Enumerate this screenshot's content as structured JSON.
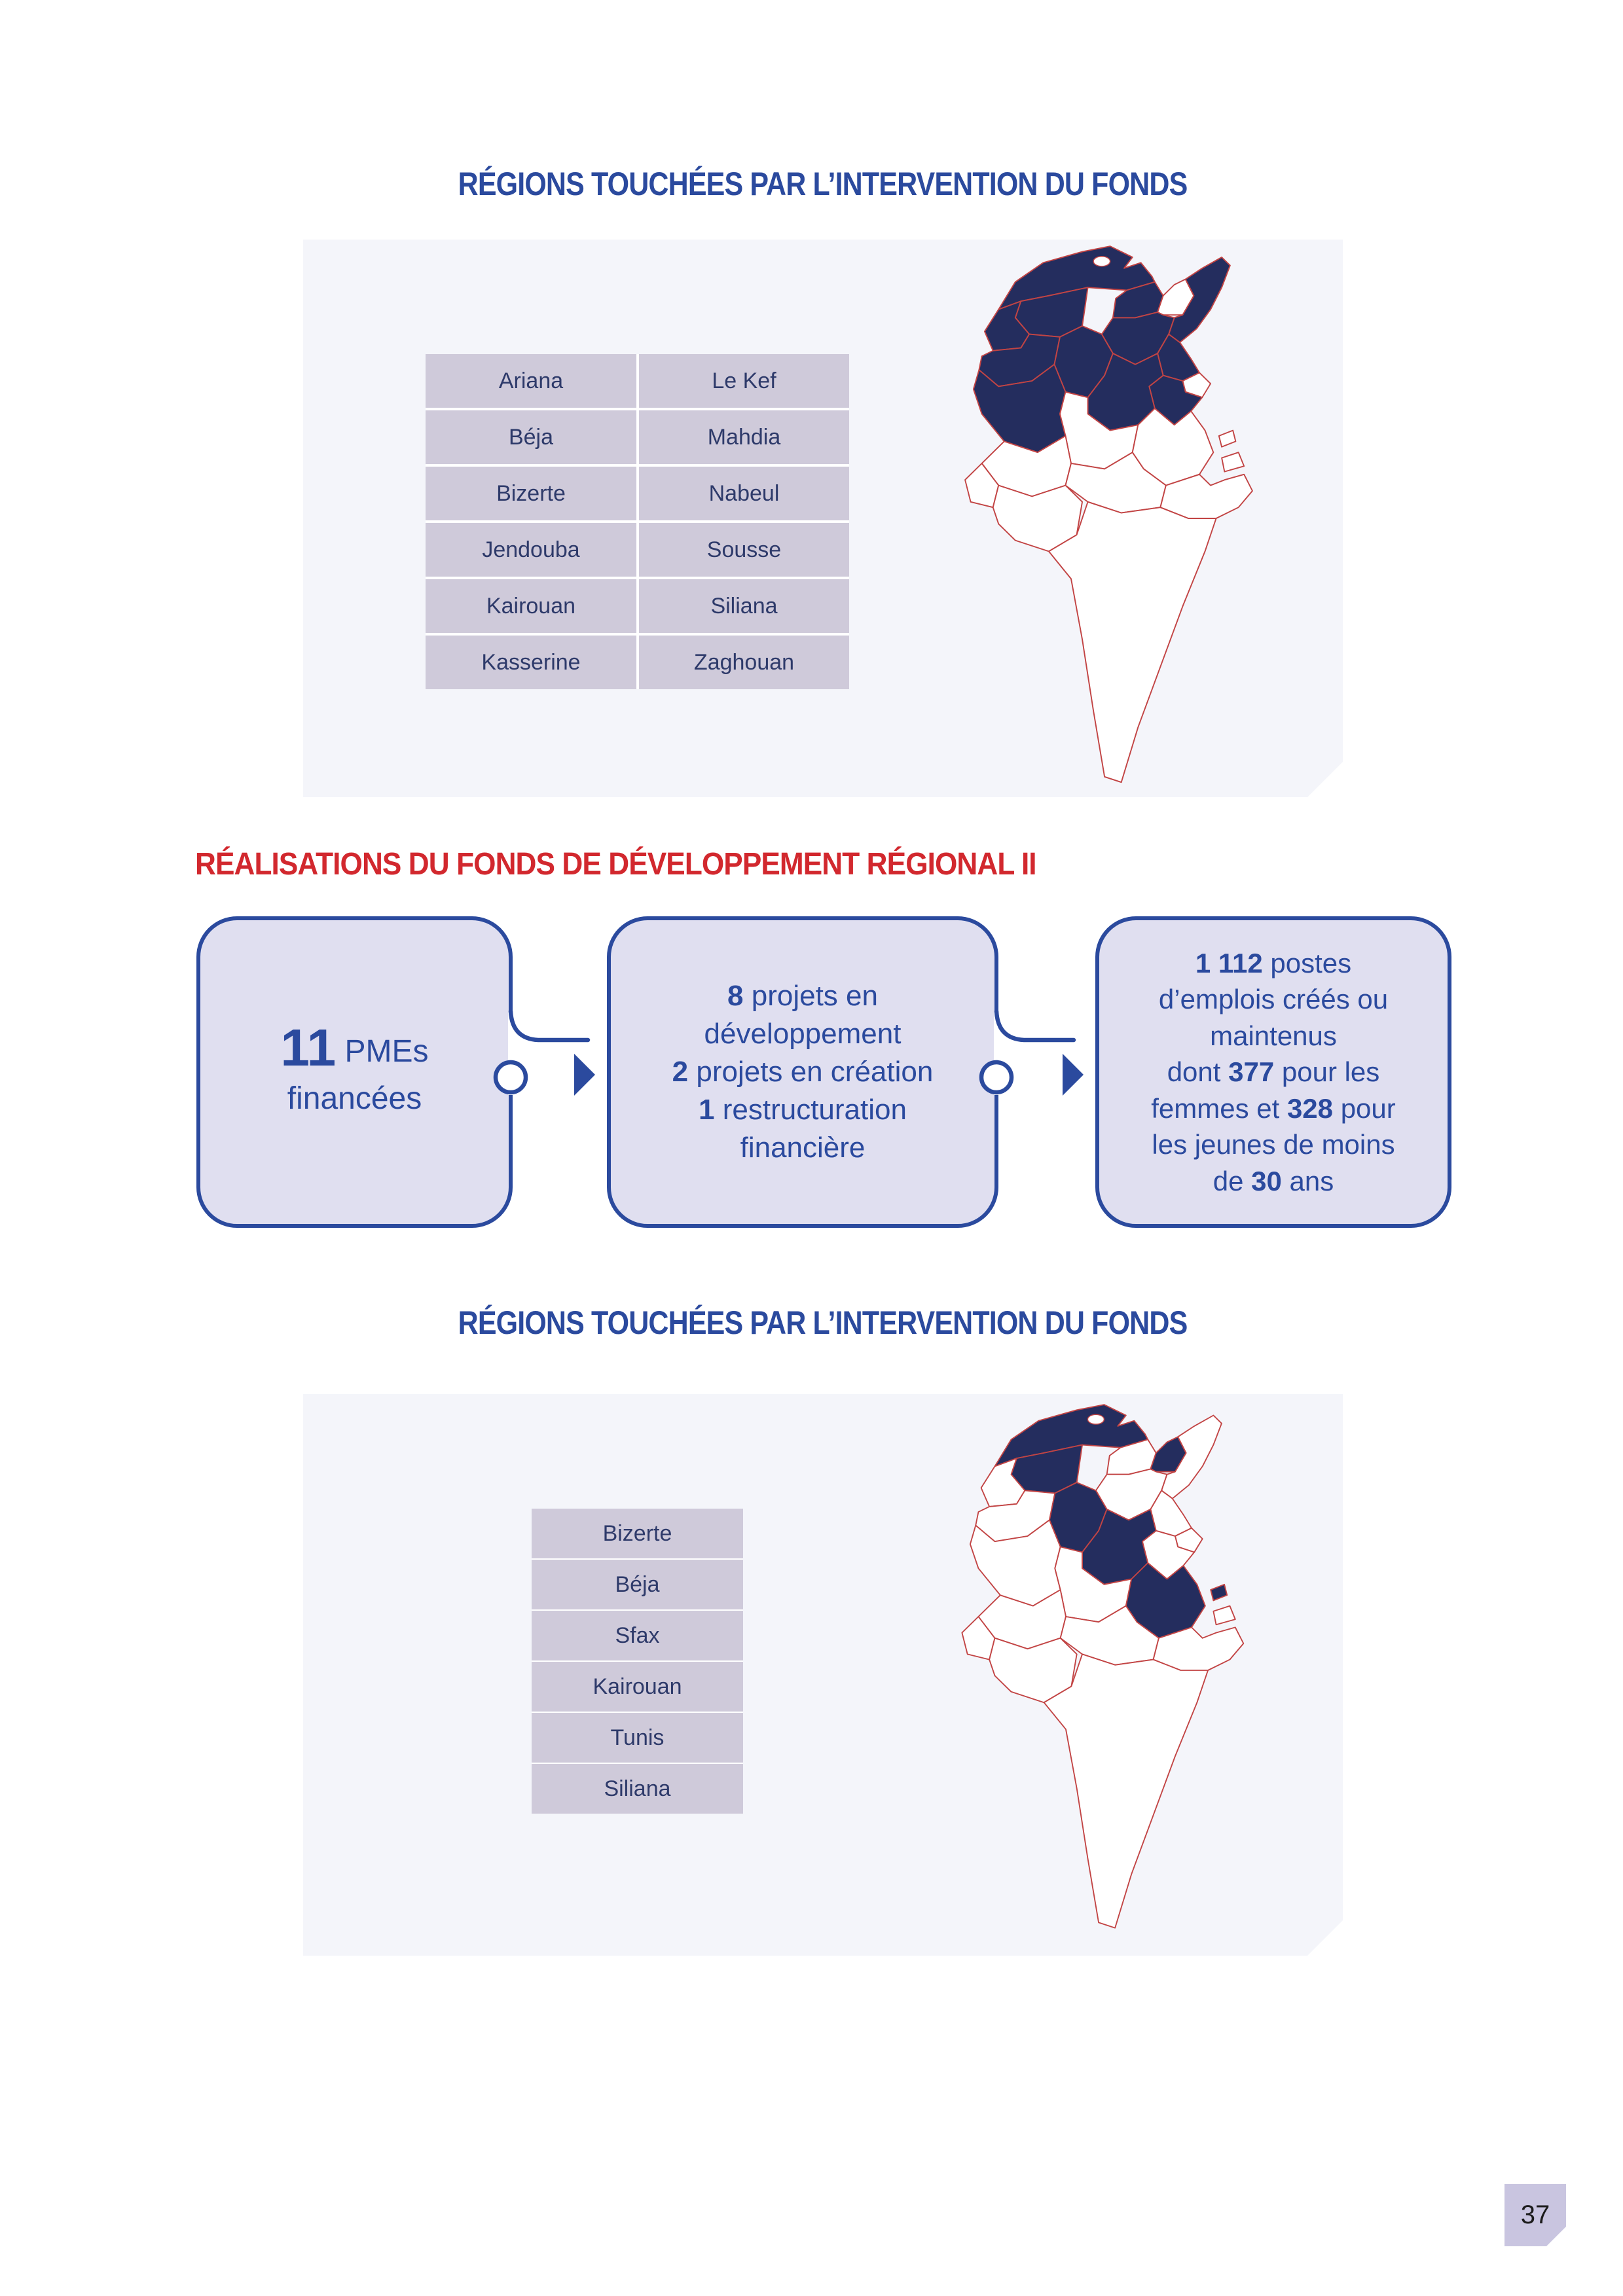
{
  "colors": {
    "accent_blue": "#2B4A9E",
    "red": "#D2282E",
    "navy_text": "#2E3A6A",
    "map_navy": "#242D5E",
    "map_outline": "#C24444",
    "panel_bg": "#F4F5FA",
    "cell_bg": "#CFCADA",
    "box_fill": "#E0DFF0",
    "badge_bg": "#C9C5E0"
  },
  "section_top": {
    "title": "RÉGIONS TOUCHÉES PAR L’INTERVENTION DU FONDS",
    "regions": [
      [
        "Ariana",
        "Le Kef"
      ],
      [
        "Béja",
        "Mahdia"
      ],
      [
        "Bizerte",
        "Nabeul"
      ],
      [
        "Jendouba",
        "Sousse"
      ],
      [
        "Kairouan",
        "Siliana"
      ],
      [
        "Kasserine",
        "Zaghouan"
      ]
    ],
    "map_highlighted": [
      "bizerte",
      "ariana",
      "nabeul",
      "zaghouan",
      "jendouba",
      "beja",
      "kef",
      "siliana",
      "sousse",
      "mahdia",
      "kairouan",
      "kasserine"
    ]
  },
  "realisations": {
    "heading": "RÉALISATIONS DU FONDS DE DÉVELOPPEMENT RÉGIONAL II",
    "boxes": [
      {
        "name": "pmes-financees",
        "lines": [
          "**11** PMEs",
          "financées"
        ]
      },
      {
        "name": "projets",
        "lines": [
          "**8** projets en",
          "développement",
          "**2** projets en création",
          "**1** restructuration",
          "financière"
        ]
      },
      {
        "name": "emplois",
        "lines": [
          "**1 112** postes",
          "d’emplois créés ou",
          "maintenus",
          "dont **377** pour les",
          "femmes et **328** pour",
          "les jeunes de moins",
          "de **30** ans"
        ]
      }
    ]
  },
  "section_bottom": {
    "title": "RÉGIONS TOUCHÉES PAR L’INTERVENTION DU FONDS",
    "regions": [
      "Bizerte",
      "Béja",
      "Sfax",
      "Kairouan",
      "Tunis",
      "Siliana"
    ],
    "map_highlighted": [
      "bizerte",
      "beja",
      "sfax",
      "kerkennah",
      "kairouan",
      "tunis",
      "siliana"
    ]
  },
  "page": {
    "number": "37"
  }
}
